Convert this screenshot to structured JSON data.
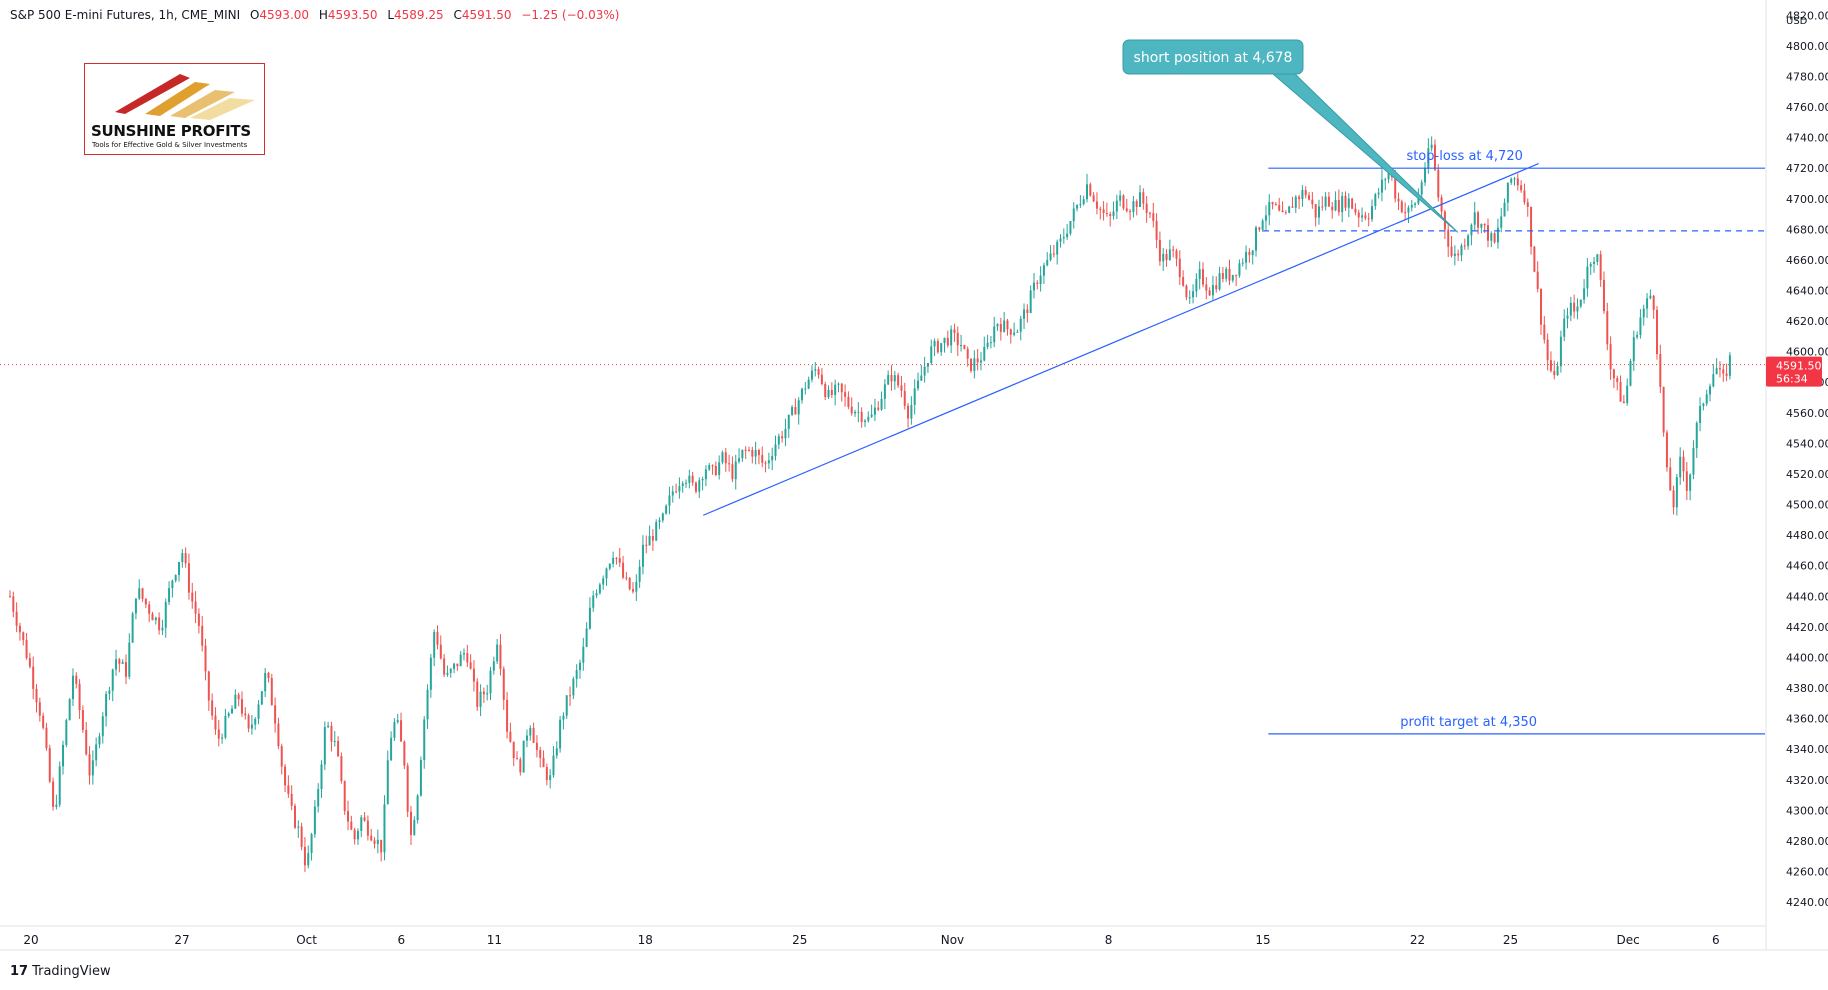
{
  "header": {
    "symbol": "S&P 500 E-mini Futures, 1h, CME_MINI",
    "open_label": "O",
    "open": "4593.00",
    "high_label": "H",
    "high": "4593.50",
    "low_label": "L",
    "low": "4589.25",
    "close_label": "C",
    "close": "4591.50",
    "change": "−1.25 (−0.03%)"
  },
  "logo": {
    "name": "SUNSHINE PROFITS",
    "tagline": "Tools for Effective Gold & Silver Investments"
  },
  "branding": {
    "text": "TradingView"
  },
  "colors": {
    "up": "#26a69a",
    "down": "#ef5350",
    "line": "#2962ff",
    "callout": "#4db6c0",
    "price_tag": "#f23645"
  },
  "chart_data": {
    "type": "candlestick",
    "title": "S&P 500 E-mini Futures, 1h, CME_MINI",
    "currency": "USD",
    "ylim": [
      4225,
      4830
    ],
    "y_ticks": [
      "4240.00",
      "4260.00",
      "4280.00",
      "4300.00",
      "4320.00",
      "4340.00",
      "4360.00",
      "4380.00",
      "4400.00",
      "4420.00",
      "4440.00",
      "4460.00",
      "4480.00",
      "4500.00",
      "4520.00",
      "4540.00",
      "4560.00",
      "4580.00",
      "4600.00",
      "4620.00",
      "4640.00",
      "4660.00",
      "4680.00",
      "4700.00",
      "4720.00",
      "4740.00",
      "4760.00",
      "4780.00",
      "4800.00",
      "4820.00"
    ],
    "x_ticks": [
      {
        "label": "20",
        "pos": 0.012
      },
      {
        "label": "27",
        "pos": 0.098
      },
      {
        "label": "Oct",
        "pos": 0.169
      },
      {
        "label": "6",
        "pos": 0.223
      },
      {
        "label": "11",
        "pos": 0.276
      },
      {
        "label": "18",
        "pos": 0.362
      },
      {
        "label": "25",
        "pos": 0.45
      },
      {
        "label": "Nov",
        "pos": 0.537
      },
      {
        "label": "8",
        "pos": 0.626
      },
      {
        "label": "15",
        "pos": 0.714
      },
      {
        "label": "22",
        "pos": 0.802
      },
      {
        "label": "25",
        "pos": 0.855
      },
      {
        "label": "Dec",
        "pos": 0.922
      },
      {
        "label": "6",
        "pos": 0.972
      }
    ],
    "price_path": [
      [
        0,
        4440
      ],
      [
        0.01,
        4400
      ],
      [
        0.018,
        4360
      ],
      [
        0.022,
        4325
      ],
      [
        0.025,
        4295
      ],
      [
        0.03,
        4340
      ],
      [
        0.036,
        4390
      ],
      [
        0.042,
        4350
      ],
      [
        0.046,
        4320
      ],
      [
        0.052,
        4360
      ],
      [
        0.06,
        4400
      ],
      [
        0.066,
        4390
      ],
      [
        0.072,
        4445
      ],
      [
        0.08,
        4430
      ],
      [
        0.086,
        4420
      ],
      [
        0.092,
        4450
      ],
      [
        0.098,
        4470
      ],
      [
        0.103,
        4440
      ],
      [
        0.108,
        4420
      ],
      [
        0.112,
        4380
      ],
      [
        0.118,
        4345
      ],
      [
        0.124,
        4360
      ],
      [
        0.13,
        4375
      ],
      [
        0.136,
        4350
      ],
      [
        0.14,
        4365
      ],
      [
        0.146,
        4390
      ],
      [
        0.152,
        4355
      ],
      [
        0.156,
        4320
      ],
      [
        0.16,
        4300
      ],
      [
        0.165,
        4285
      ],
      [
        0.169,
        4262
      ],
      [
        0.174,
        4300
      ],
      [
        0.18,
        4358
      ],
      [
        0.186,
        4340
      ],
      [
        0.19,
        4305
      ],
      [
        0.196,
        4280
      ],
      [
        0.2,
        4295
      ],
      [
        0.206,
        4285
      ],
      [
        0.212,
        4275
      ],
      [
        0.216,
        4345
      ],
      [
        0.22,
        4360
      ],
      [
        0.225,
        4330
      ],
      [
        0.228,
        4280
      ],
      [
        0.232,
        4310
      ],
      [
        0.236,
        4360
      ],
      [
        0.242,
        4420
      ],
      [
        0.248,
        4385
      ],
      [
        0.254,
        4395
      ],
      [
        0.26,
        4405
      ],
      [
        0.266,
        4370
      ],
      [
        0.272,
        4380
      ],
      [
        0.278,
        4415
      ],
      [
        0.283,
        4355
      ],
      [
        0.29,
        4325
      ],
      [
        0.296,
        4360
      ],
      [
        0.302,
        4330
      ],
      [
        0.308,
        4320
      ],
      [
        0.314,
        4360
      ],
      [
        0.32,
        4380
      ],
      [
        0.326,
        4400
      ],
      [
        0.332,
        4440
      ],
      [
        0.338,
        4455
      ],
      [
        0.344,
        4470
      ],
      [
        0.35,
        4450
      ],
      [
        0.356,
        4440
      ],
      [
        0.36,
        4470
      ],
      [
        0.366,
        4480
      ],
      [
        0.372,
        4490
      ],
      [
        0.378,
        4510
      ],
      [
        0.384,
        4520
      ],
      [
        0.39,
        4510
      ],
      [
        0.396,
        4525
      ],
      [
        0.4,
        4520
      ],
      [
        0.406,
        4530
      ],
      [
        0.412,
        4520
      ],
      [
        0.418,
        4535
      ],
      [
        0.424,
        4535
      ],
      [
        0.43,
        4525
      ],
      [
        0.436,
        4540
      ],
      [
        0.442,
        4550
      ],
      [
        0.448,
        4565
      ],
      [
        0.454,
        4580
      ],
      [
        0.46,
        4590
      ],
      [
        0.466,
        4570
      ],
      [
        0.472,
        4575
      ],
      [
        0.478,
        4565
      ],
      [
        0.484,
        4560
      ],
      [
        0.49,
        4555
      ],
      [
        0.496,
        4570
      ],
      [
        0.502,
        4585
      ],
      [
        0.508,
        4575
      ],
      [
        0.512,
        4560
      ],
      [
        0.518,
        4580
      ],
      [
        0.524,
        4600
      ],
      [
        0.53,
        4605
      ],
      [
        0.536,
        4610
      ],
      [
        0.542,
        4605
      ],
      [
        0.546,
        4590
      ],
      [
        0.552,
        4595
      ],
      [
        0.556,
        4600
      ],
      [
        0.562,
        4620
      ],
      [
        0.568,
        4615
      ],
      [
        0.574,
        4615
      ],
      [
        0.58,
        4630
      ],
      [
        0.586,
        4650
      ],
      [
        0.592,
        4660
      ],
      [
        0.598,
        4670
      ],
      [
        0.604,
        4685
      ],
      [
        0.61,
        4700
      ],
      [
        0.614,
        4710
      ],
      [
        0.62,
        4695
      ],
      [
        0.626,
        4685
      ],
      [
        0.632,
        4700
      ],
      [
        0.638,
        4695
      ],
      [
        0.644,
        4700
      ],
      [
        0.65,
        4690
      ],
      [
        0.656,
        4660
      ],
      [
        0.662,
        4665
      ],
      [
        0.668,
        4650
      ],
      [
        0.672,
        4630
      ],
      [
        0.678,
        4650
      ],
      [
        0.684,
        4640
      ],
      [
        0.69,
        4650
      ],
      [
        0.696,
        4650
      ],
      [
        0.702,
        4660
      ],
      [
        0.708,
        4670
      ],
      [
        0.714,
        4690
      ],
      [
        0.72,
        4695
      ],
      [
        0.726,
        4685
      ],
      [
        0.732,
        4700
      ],
      [
        0.738,
        4705
      ],
      [
        0.744,
        4690
      ],
      [
        0.75,
        4700
      ],
      [
        0.756,
        4695
      ],
      [
        0.762,
        4700
      ],
      [
        0.768,
        4690
      ],
      [
        0.774,
        4690
      ],
      [
        0.78,
        4705
      ],
      [
        0.786,
        4720
      ],
      [
        0.79,
        4700
      ],
      [
        0.796,
        4690
      ],
      [
        0.802,
        4700
      ],
      [
        0.806,
        4720
      ],
      [
        0.81,
        4735
      ],
      [
        0.814,
        4700
      ],
      [
        0.818,
        4680
      ],
      [
        0.822,
        4660
      ],
      [
        0.828,
        4670
      ],
      [
        0.834,
        4690
      ],
      [
        0.84,
        4680
      ],
      [
        0.846,
        4670
      ],
      [
        0.852,
        4700
      ],
      [
        0.856,
        4715
      ],
      [
        0.86,
        4710
      ],
      [
        0.864,
        4700
      ],
      [
        0.868,
        4660
      ],
      [
        0.872,
        4625
      ],
      [
        0.876,
        4595
      ],
      [
        0.88,
        4580
      ],
      [
        0.884,
        4610
      ],
      [
        0.888,
        4630
      ],
      [
        0.892,
        4625
      ],
      [
        0.896,
        4640
      ],
      [
        0.9,
        4660
      ],
      [
        0.904,
        4665
      ],
      [
        0.908,
        4630
      ],
      [
        0.912,
        4590
      ],
      [
        0.916,
        4575
      ],
      [
        0.92,
        4565
      ],
      [
        0.924,
        4600
      ],
      [
        0.928,
        4620
      ],
      [
        0.932,
        4630
      ],
      [
        0.936,
        4640
      ],
      [
        0.94,
        4580
      ],
      [
        0.944,
        4520
      ],
      [
        0.948,
        4500
      ],
      [
        0.952,
        4530
      ],
      [
        0.956,
        4510
      ],
      [
        0.96,
        4545
      ],
      [
        0.964,
        4565
      ],
      [
        0.968,
        4580
      ],
      [
        0.972,
        4590
      ],
      [
        0.976,
        4580
      ],
      [
        0.98,
        4595
      ]
    ],
    "last_price": {
      "value": "4591.50",
      "countdown": "56:34"
    },
    "horizontal_lines": [
      {
        "label": "stop-loss at 4,720",
        "value": 4720,
        "x_start": 0.717,
        "style": "solid"
      },
      {
        "label": "",
        "value": 4679,
        "x_start": 0.714,
        "style": "dashed"
      },
      {
        "label": "profit target at 4,350",
        "value": 4350,
        "x_start": 0.717,
        "style": "solid"
      }
    ],
    "trendline": {
      "from": [
        0.395,
        4493
      ],
      "to": [
        0.871,
        4723
      ]
    },
    "callout": {
      "text": "short position at 4,678",
      "target": [
        0.825,
        4678
      ]
    }
  }
}
